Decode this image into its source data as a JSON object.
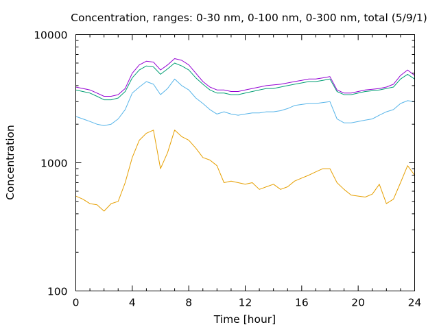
{
  "chart_data": {
    "type": "line",
    "title": "Concentration, ranges: 0-30 nm, 0-100 nm, 0-300 nm, total (5/9/1)",
    "xlabel": "Time [hour]",
    "ylabel": "Concentration",
    "xlim": [
      0,
      24
    ],
    "ylim": [
      100,
      10000
    ],
    "yscale": "log",
    "grid": false,
    "xticks": [
      0,
      4,
      8,
      12,
      16,
      20,
      24
    ],
    "xtick_labels": [
      "0",
      "4",
      "8",
      "12",
      "16",
      "20",
      "24"
    ],
    "yticks": [
      100,
      1000,
      10000
    ],
    "ytick_labels": [
      "100",
      "1000",
      "10000"
    ],
    "x": [
      0,
      0.5,
      1,
      1.5,
      2,
      2.5,
      3,
      3.5,
      4,
      4.5,
      5,
      5.5,
      6,
      6.5,
      7,
      7.5,
      8,
      8.5,
      9,
      9.5,
      10,
      10.5,
      11,
      11.5,
      12,
      12.5,
      13,
      13.5,
      14,
      14.5,
      15,
      15.5,
      16,
      16.5,
      17,
      17.5,
      18,
      18.5,
      19,
      19.5,
      20,
      20.5,
      21,
      21.5,
      22,
      22.5,
      23,
      23.5,
      24
    ],
    "series": [
      {
        "color": "#e69f00",
        "values": [
          550,
          520,
          480,
          470,
          420,
          480,
          500,
          700,
          1100,
          1500,
          1700,
          1800,
          900,
          1200,
          1800,
          1600,
          1500,
          1300,
          1100,
          1050,
          950,
          700,
          720,
          700,
          680,
          700,
          620,
          650,
          680,
          620,
          650,
          720,
          760,
          800,
          850,
          900,
          900,
          700,
          620,
          560,
          550,
          540,
          570,
          680,
          480,
          520,
          700,
          950,
          800
        ]
      },
      {
        "color": "#56b4e9",
        "values": [
          2300,
          2200,
          2100,
          2000,
          1950,
          2000,
          2200,
          2600,
          3500,
          3900,
          4300,
          4100,
          3400,
          3800,
          4500,
          4000,
          3700,
          3200,
          2900,
          2600,
          2400,
          2500,
          2400,
          2350,
          2400,
          2450,
          2450,
          2500,
          2500,
          2550,
          2650,
          2800,
          2850,
          2900,
          2900,
          2950,
          3000,
          2200,
          2050,
          2050,
          2100,
          2150,
          2200,
          2350,
          2500,
          2600,
          2900,
          3050,
          3000
        ]
      },
      {
        "color": "#009e73",
        "values": [
          3700,
          3600,
          3500,
          3300,
          3100,
          3100,
          3200,
          3600,
          4600,
          5300,
          5700,
          5600,
          4900,
          5400,
          6000,
          5700,
          5300,
          4600,
          4100,
          3700,
          3500,
          3500,
          3400,
          3400,
          3500,
          3600,
          3700,
          3800,
          3800,
          3900,
          4000,
          4100,
          4200,
          4300,
          4300,
          4400,
          4500,
          3600,
          3400,
          3400,
          3500,
          3600,
          3650,
          3700,
          3800,
          3900,
          4500,
          4900,
          4500
        ]
      },
      {
        "color": "#9400d3",
        "values": [
          3900,
          3800,
          3700,
          3500,
          3300,
          3300,
          3400,
          3800,
          5000,
          5800,
          6200,
          6100,
          5300,
          5800,
          6500,
          6300,
          5800,
          5000,
          4300,
          3900,
          3700,
          3700,
          3600,
          3600,
          3700,
          3800,
          3900,
          4000,
          4050,
          4100,
          4200,
          4300,
          4400,
          4500,
          4500,
          4600,
          4700,
          3700,
          3500,
          3500,
          3600,
          3700,
          3750,
          3800,
          3900,
          4100,
          4800,
          5300,
          4800
        ]
      }
    ]
  }
}
